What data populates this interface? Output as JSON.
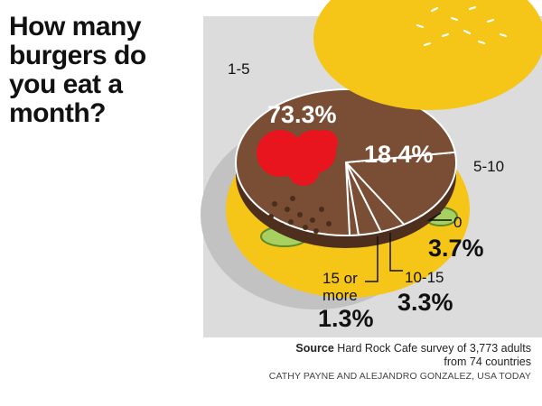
{
  "title": "How many burgers do you eat a month?",
  "chart_data": {
    "type": "pie",
    "title": "How many burgers do you eat a month?",
    "slices": [
      {
        "label": "1-5",
        "value": 73.3,
        "display": "73.3%"
      },
      {
        "label": "5-10",
        "value": 18.4,
        "display": "18.4%"
      },
      {
        "label": "0",
        "value": 3.7,
        "display": "3.7%"
      },
      {
        "label": "10-15",
        "value": 3.3,
        "display": "3.3%"
      },
      {
        "label": "15 or more",
        "value": 1.3,
        "display": "1.3%"
      }
    ]
  },
  "source": {
    "label": "Source",
    "line1": "Hard Rock Cafe survey of 3,773 adults",
    "line2": "from 74 countries"
  },
  "credit": "CATHY PAYNE AND ALEJANDRO GONZALEZ, USA TODAY",
  "colors": {
    "panel": "#dcdcdc",
    "bun": "#f5c518",
    "patty": "#7a4e35",
    "tomato": "#e8141e",
    "lettuce": "#a8d060"
  }
}
